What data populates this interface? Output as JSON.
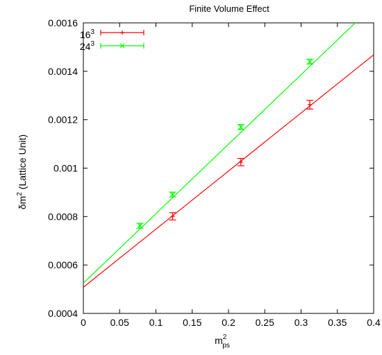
{
  "chart_data": {
    "type": "scatter",
    "title": "Finite Volume  Effect",
    "xlabel": {
      "base": "m",
      "sup": "2",
      "sub": "ps"
    },
    "ylabel": {
      "prefix": "δm",
      "sup": "2",
      "suffix": " (Lattice Unit)"
    },
    "xlim": [
      0,
      0.4
    ],
    "ylim": [
      0.0004,
      0.0016
    ],
    "x_ticks": [
      "0",
      "0.05",
      "0.1",
      "0.15",
      "0.2",
      "0.25",
      "0.3",
      "0.35",
      "0.4"
    ],
    "y_ticks": [
      "0.0004",
      "0.0006",
      "0.0008",
      "0.001",
      "0.0012",
      "0.0014",
      "0.0016"
    ],
    "grid": false,
    "legend_position": "top-left",
    "series": [
      {
        "name": "16",
        "name_sup": "3",
        "color": "#ff0000",
        "marker": "plus",
        "points": [
          {
            "x": 0.123,
            "y": 0.000801,
            "err": 1.5e-05
          },
          {
            "x": 0.217,
            "y": 0.001025,
            "err": 1.5e-05
          },
          {
            "x": 0.312,
            "y": 0.001262,
            "err": 1.8e-05
          }
        ],
        "fit_line": {
          "intercept": 0.000508,
          "slope": 0.0024
        }
      },
      {
        "name": "24",
        "name_sup": "3",
        "color": "#00ff00",
        "marker": "cross",
        "points": [
          {
            "x": 0.078,
            "y": 0.000762,
            "err": 1e-05
          },
          {
            "x": 0.123,
            "y": 0.000891,
            "err": 1e-05
          },
          {
            "x": 0.217,
            "y": 0.00117,
            "err": 1e-05
          },
          {
            "x": 0.312,
            "y": 0.00144,
            "err": 1e-05
          }
        ],
        "fit_line": {
          "intercept": 0.000525,
          "slope": 0.00287
        }
      }
    ]
  }
}
